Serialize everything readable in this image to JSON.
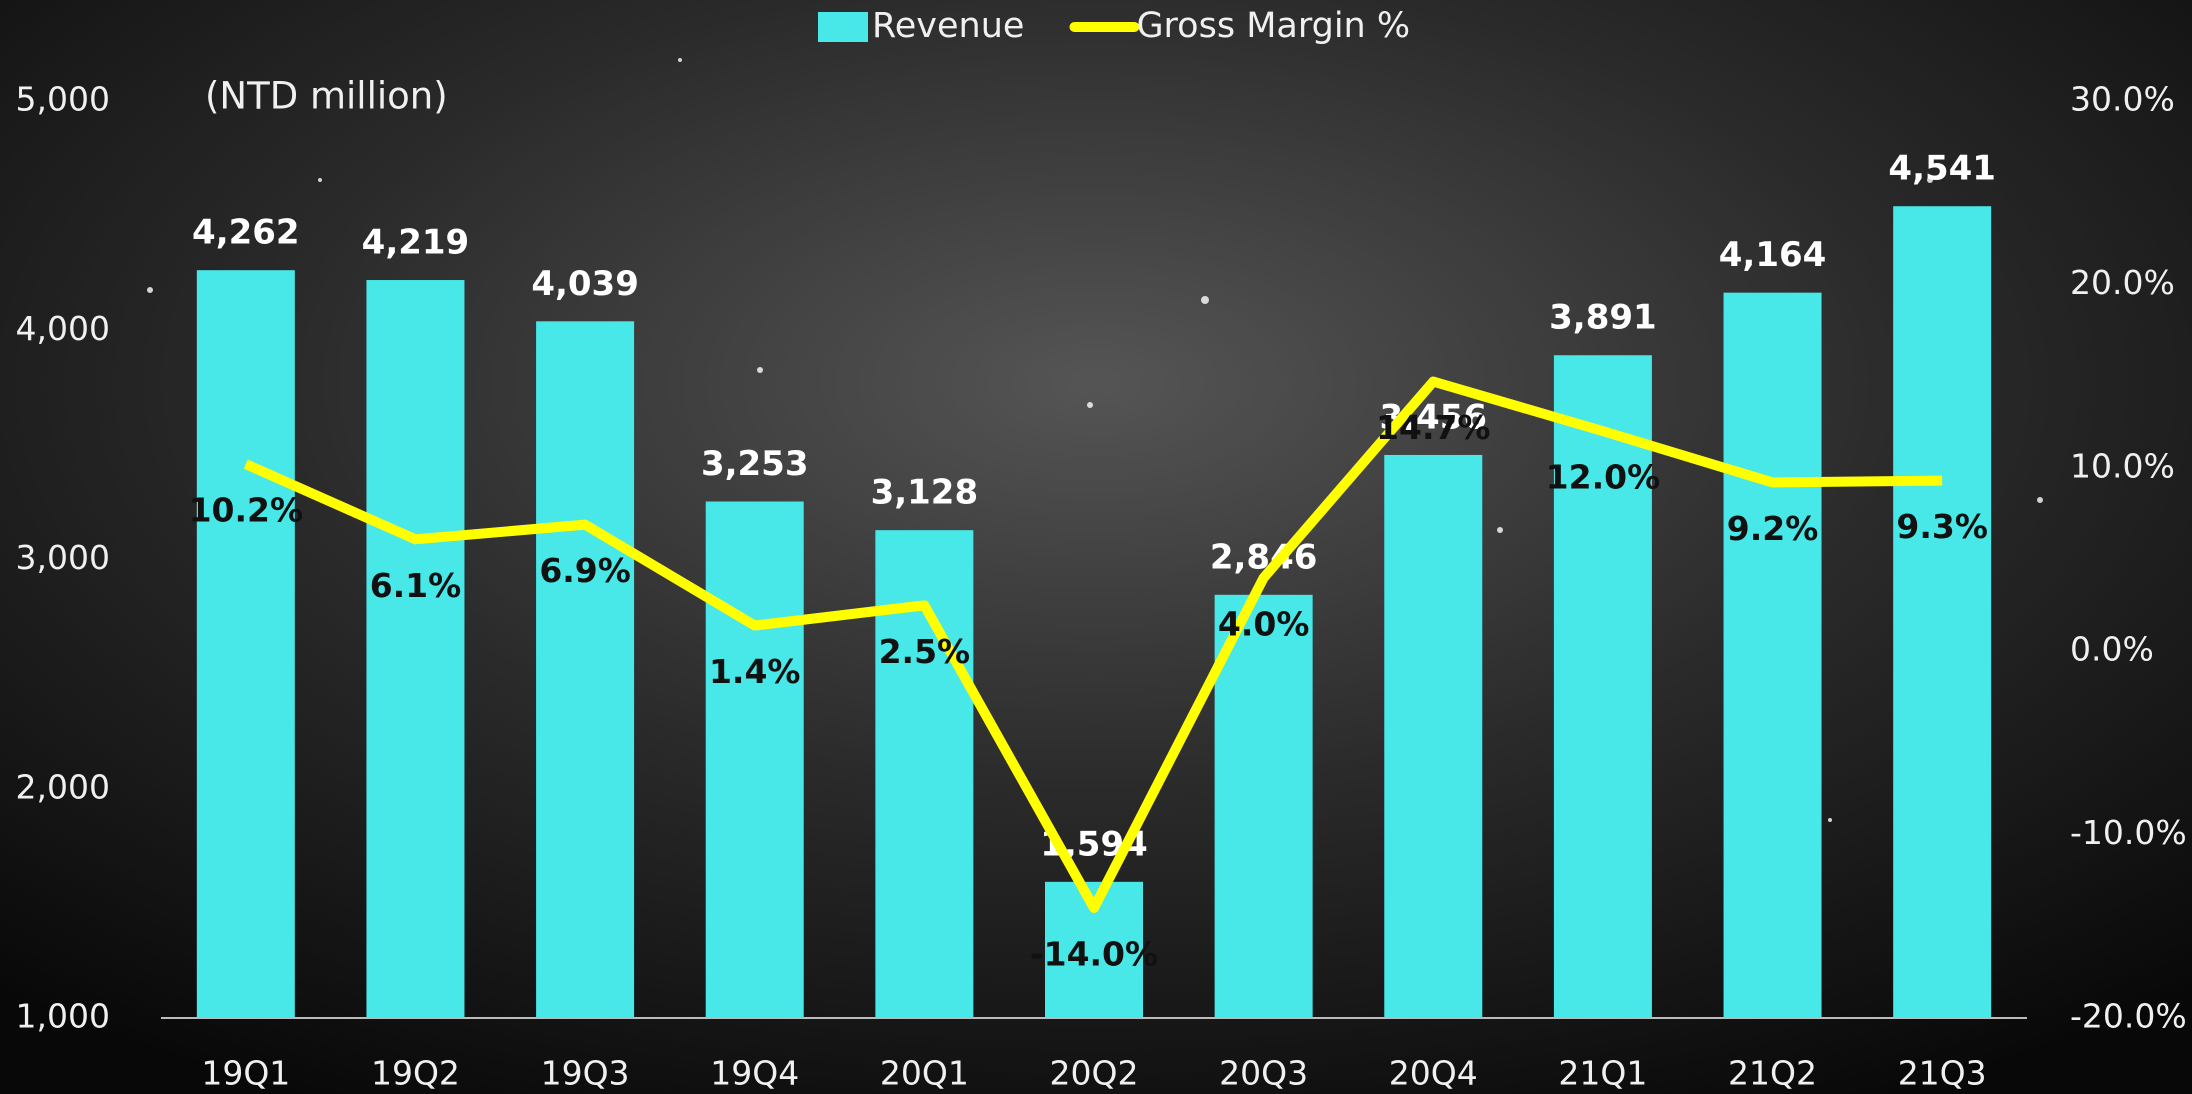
{
  "chart_data": {
    "type": "bar",
    "subtitle": "(NTD million)",
    "categories": [
      "19Q1",
      "19Q2",
      "19Q3",
      "19Q4",
      "20Q1",
      "20Q2",
      "20Q3",
      "20Q4",
      "21Q1",
      "21Q2",
      "21Q3"
    ],
    "series": [
      {
        "name": "Revenue",
        "color": "#48e8e8",
        "type": "bar",
        "values": [
          4262,
          4219,
          4039,
          3253,
          3128,
          1594,
          2846,
          3456,
          3891,
          4164,
          4541
        ],
        "value_labels": [
          "4,262",
          "4,219",
          "4,039",
          "3,253",
          "3,128",
          "1,594",
          "2,846",
          "3,456",
          "3,891",
          "4,164",
          "4,541"
        ]
      },
      {
        "name": "Gross Margin %",
        "color": "#ffff00",
        "type": "line",
        "axis": "y2",
        "values": [
          10.2,
          6.1,
          6.9,
          1.4,
          2.5,
          -14.0,
          4.0,
          14.7,
          12.0,
          9.2,
          9.3
        ],
        "value_labels": [
          "10.2%",
          "6.1%",
          "6.9%",
          "1.4%",
          "2.5%",
          "-14.0%",
          "4.0%",
          "14.7%",
          "12.0%",
          "9.2%",
          "9.3%"
        ]
      }
    ],
    "ylim": [
      1000,
      5000
    ],
    "yticks": [
      {
        "value": 1000,
        "label": "1,000"
      },
      {
        "value": 2000,
        "label": "2,000"
      },
      {
        "value": 3000,
        "label": "3,000"
      },
      {
        "value": 4000,
        "label": "4,000"
      },
      {
        "value": 5000,
        "label": "5,000"
      }
    ],
    "y2lim": [
      -20,
      30
    ],
    "y2ticks": [
      {
        "value": -20,
        "label": "-20.0%"
      },
      {
        "value": -10,
        "label": "-10.0%"
      },
      {
        "value": 0,
        "label": "0.0%"
      },
      {
        "value": 10,
        "label": "10.0%"
      },
      {
        "value": 20,
        "label": "20.0%"
      },
      {
        "value": 30,
        "label": "30.0%"
      }
    ],
    "legend": "top"
  }
}
